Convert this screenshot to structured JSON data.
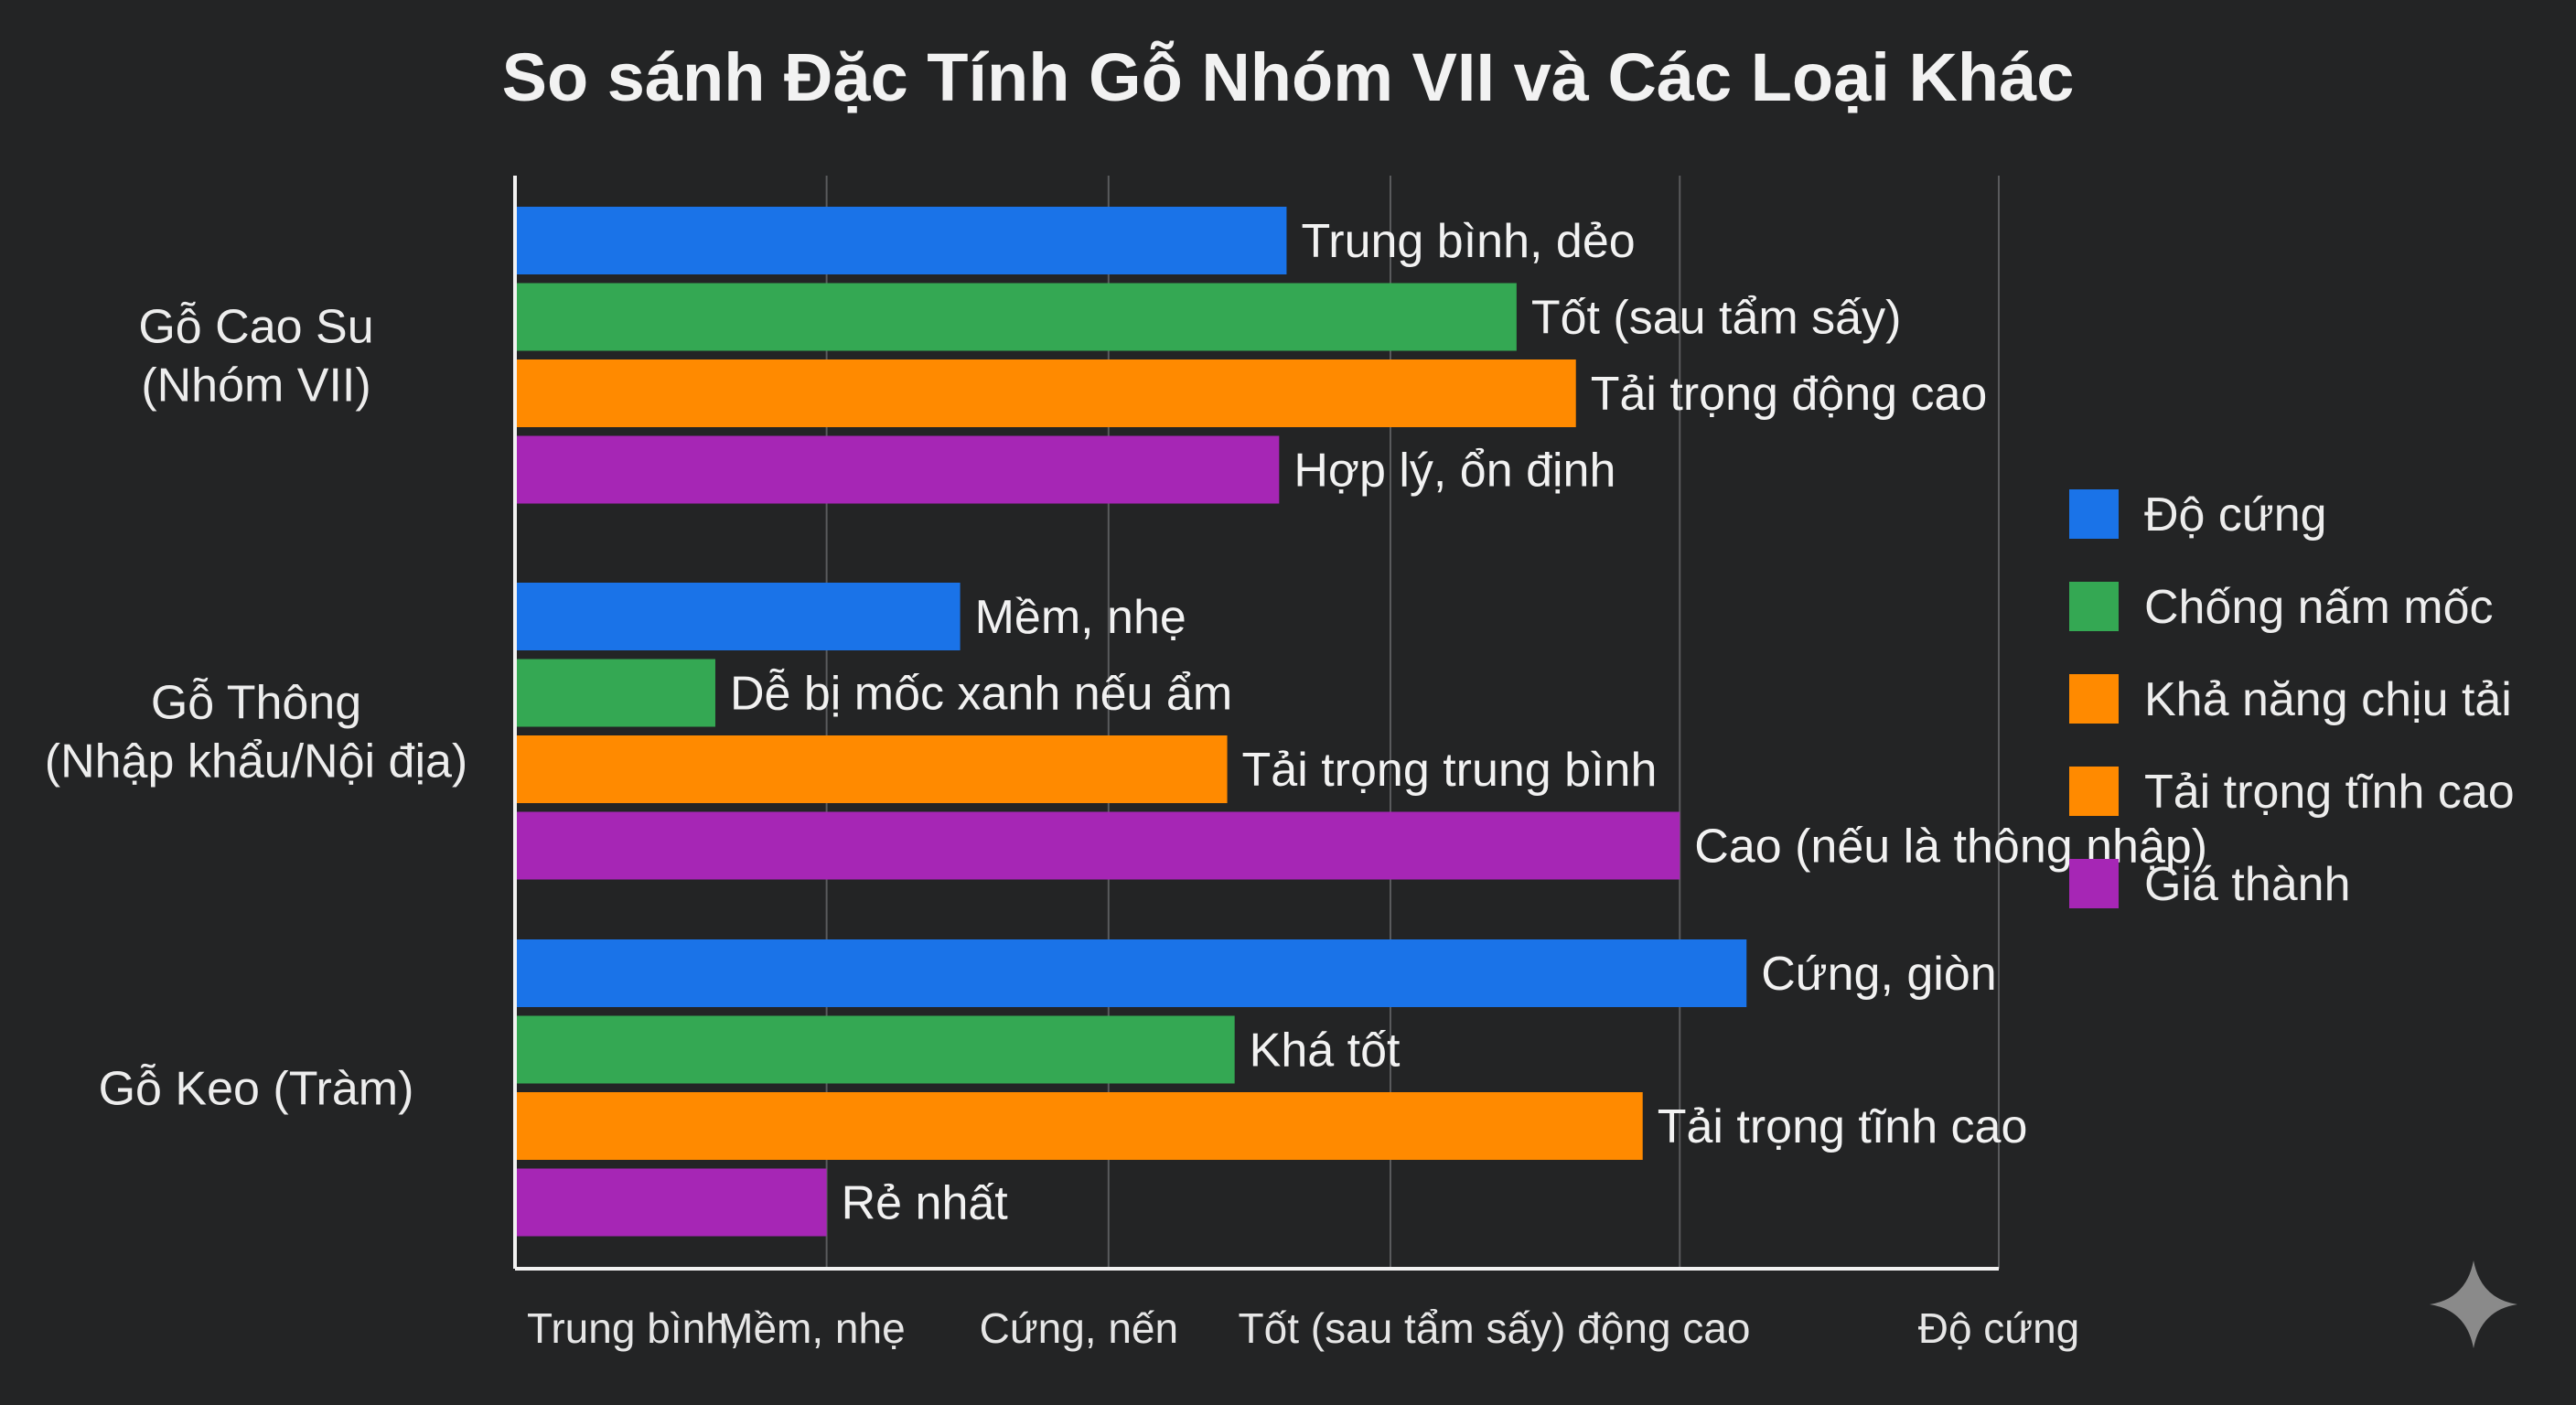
{
  "chart_data": {
    "type": "bar",
    "orientation": "horizontal",
    "title": "So sánh Đặc Tính Gỗ Nhóm VII và Các Loại Khác",
    "categories": [
      [
        "Gỗ Cao Su",
        "(Nhóm VII)"
      ],
      [
        "Gỗ Thông",
        "(Nhập khẩu/Nội địa)"
      ],
      [
        "Gỗ Keo (Tràm)"
      ]
    ],
    "series": [
      {
        "name": "Độ cứng",
        "color": "#1a73e8",
        "values": [
          5.2,
          3.0,
          8.3
        ],
        "labels": [
          "Trung bình, dẻo",
          "Mềm, nhẹ",
          "Cứng, giòn"
        ]
      },
      {
        "name": "Chống nấm mốc",
        "color": "#34a853",
        "values": [
          6.75,
          1.35,
          4.85
        ],
        "labels": [
          "Tốt (sau tẩm sấy)",
          "Dễ bị mốc xanh nếu ẩm",
          "Khá tốt"
        ]
      },
      {
        "name": "Khả năng chịu tải",
        "color": "#ff8a00",
        "values": [
          7.15,
          4.8,
          null
        ],
        "labels": [
          "Tải trọng động cao",
          "Tải trọng trung bình",
          null
        ]
      },
      {
        "name": "Tải trọng tĩnh cao",
        "color": "#ff8a00",
        "values": [
          null,
          null,
          7.6
        ],
        "labels": [
          null,
          null,
          "Tải trọng tĩnh cao"
        ]
      },
      {
        "name": "Giá thành",
        "color": "#a626b5",
        "values": [
          5.15,
          7.85,
          2.1
        ],
        "labels": [
          "Hợp lý, ổn định",
          "Cao (nếu là thông nhập)",
          "Rẻ nhất"
        ]
      }
    ],
    "bar_rows": [
      [
        [
          0,
          0
        ],
        [
          1,
          0
        ],
        [
          2,
          0
        ],
        [
          4,
          0
        ]
      ],
      [
        [
          0,
          1
        ],
        [
          1,
          1
        ],
        [
          2,
          1
        ],
        [
          4,
          1
        ]
      ],
      [
        [
          0,
          2
        ],
        [
          1,
          2
        ],
        [
          3,
          2
        ],
        [
          4,
          2
        ]
      ]
    ],
    "x_ticks": [
      0,
      2.1,
      4.0,
      5.9,
      7.85,
      10
    ],
    "x_tick_labels": [
      {
        "text": "Trung bình,",
        "at": 0.8
      },
      {
        "text": "Mềm, nhẹ",
        "at": 2.0
      },
      {
        "text": "Cứng, nến",
        "at": 3.8
      },
      {
        "text": "Tốt (sau tẩm sấy) động cao",
        "at": 6.6
      },
      {
        "text": "Độ cứng",
        "at": 10.0
      }
    ],
    "xlim": [
      0,
      10
    ],
    "grid": true,
    "legend_position": "right"
  }
}
